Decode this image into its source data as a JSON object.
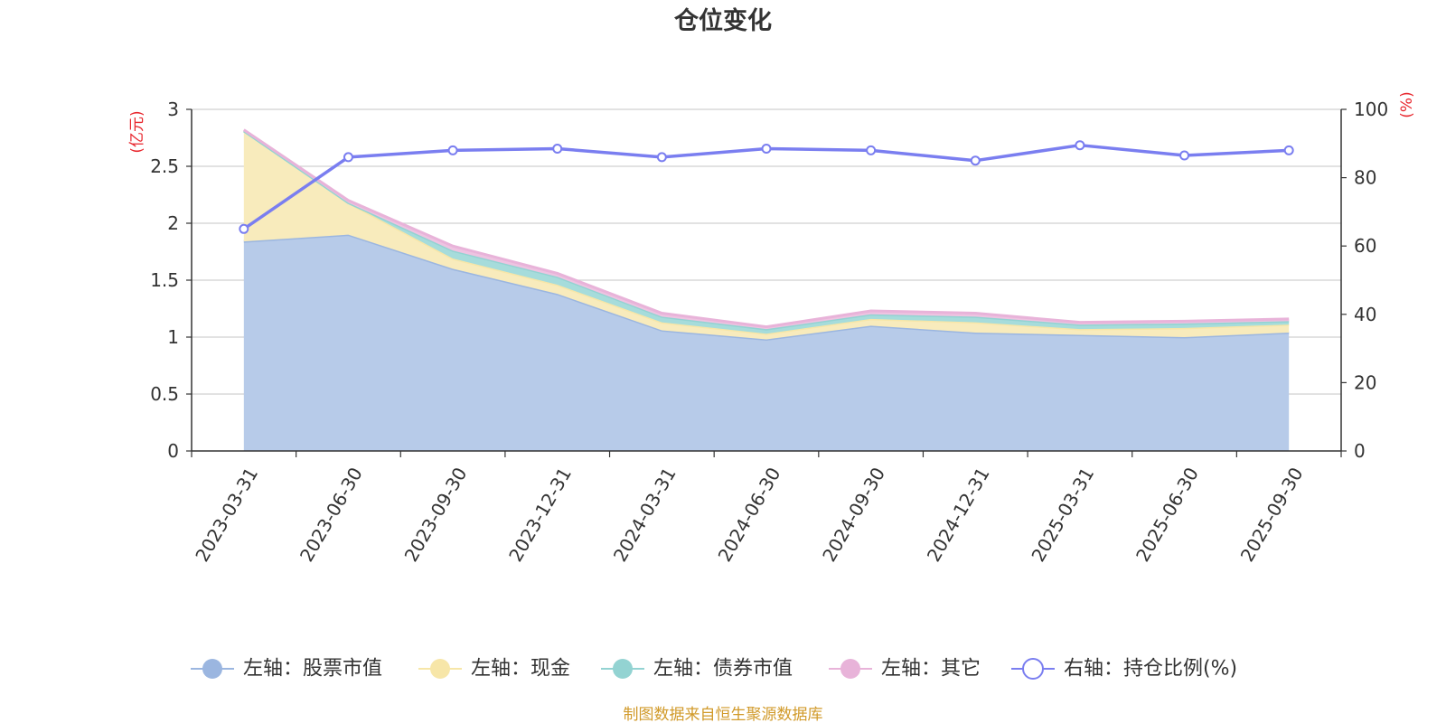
{
  "chart_data": {
    "type": "area",
    "title": "仓位变化",
    "left_unit": "(亿元)",
    "right_unit": "(%)",
    "categories": [
      "2023-03-31",
      "2023-06-30",
      "2023-09-30",
      "2023-12-31",
      "2024-03-31",
      "2024-06-30",
      "2024-09-30",
      "2024-12-31",
      "2025-03-31",
      "2025-06-30",
      "2025-09-30"
    ],
    "left_axis": {
      "min": 0,
      "max": 3,
      "ticks": [
        "0",
        "0.5",
        "1",
        "1.5",
        "2",
        "2.5",
        "3"
      ]
    },
    "right_axis": {
      "min": 0,
      "max": 100,
      "ticks": [
        "0",
        "20",
        "40",
        "60",
        "80",
        "100"
      ]
    },
    "stacked_series": [
      {
        "name": "左轴：股票市值",
        "color": "#9bb6e0",
        "fill": "#b7cbe9",
        "values": [
          1.84,
          1.9,
          1.6,
          1.38,
          1.06,
          0.98,
          1.1,
          1.04,
          1.02,
          1.0,
          1.04
        ]
      },
      {
        "name": "左轴：现金",
        "color": "#f7e6a8",
        "fill": "#f8ebbc",
        "values": [
          0.97,
          0.28,
          0.09,
          0.08,
          0.07,
          0.05,
          0.06,
          0.09,
          0.05,
          0.08,
          0.07
        ]
      },
      {
        "name": "左轴：债券市值",
        "color": "#93d3d2",
        "fill": "#a6dcdb",
        "values": [
          0,
          0,
          0.07,
          0.07,
          0.05,
          0.04,
          0.04,
          0.05,
          0.04,
          0.04,
          0.03
        ]
      },
      {
        "name": "左轴：其它",
        "color": "#e8b3d9",
        "fill": "#eec3e1",
        "values": [
          0.01,
          0.02,
          0.04,
          0.03,
          0.03,
          0.02,
          0.03,
          0.03,
          0.02,
          0.02,
          0.02
        ]
      }
    ],
    "line_series": {
      "name": "右轴：持仓比例(%)",
      "color": "#7a7ef0",
      "values": [
        65,
        86,
        88,
        88.5,
        86,
        88.5,
        88,
        85,
        89.5,
        86.5,
        88
      ]
    },
    "legend_position": "bottom",
    "grid": true
  },
  "source_note": "制图数据来自恒生聚源数据库"
}
